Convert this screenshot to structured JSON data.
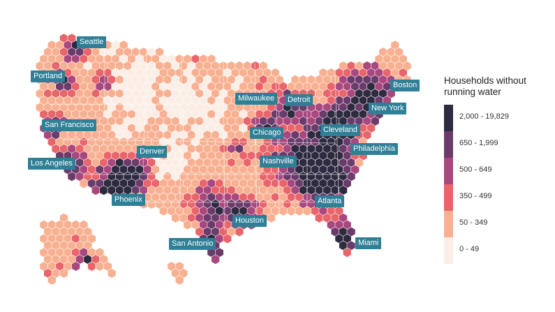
{
  "legend": {
    "title_line1": "Households without",
    "title_line2": "running water",
    "bins": [
      {
        "label": "2,000 - 19,829",
        "color": "#2e2a40"
      },
      {
        "label": "650 - 1,999",
        "color": "#6b3c6b"
      },
      {
        "label": "500 - 649",
        "color": "#a8487e"
      },
      {
        "label": "350 - 499",
        "color": "#e8666b"
      },
      {
        "label": "50 - 349",
        "color": "#f7b192"
      },
      {
        "label": "0 - 49",
        "color": "#fbeee6"
      }
    ]
  },
  "cities": [
    {
      "key": "seattle",
      "name": "Seattle"
    },
    {
      "key": "portland",
      "name": "Portland"
    },
    {
      "key": "san_francisco",
      "name": "San Francisco"
    },
    {
      "key": "los_angeles",
      "name": "Los Angeles"
    },
    {
      "key": "denver",
      "name": "Denver"
    },
    {
      "key": "phoenix",
      "name": "Phoenix"
    },
    {
      "key": "san_antonio",
      "name": "San Antonio"
    },
    {
      "key": "houston",
      "name": "Houston"
    },
    {
      "key": "milwaukee",
      "name": "Milwaukee"
    },
    {
      "key": "chicago",
      "name": "Chicago"
    },
    {
      "key": "detroit",
      "name": "Detroit"
    },
    {
      "key": "nashville",
      "name": "Nashville"
    },
    {
      "key": "atlanta",
      "name": "Atlanta"
    },
    {
      "key": "miami",
      "name": "Miami"
    },
    {
      "key": "cleveland",
      "name": "Cleveland"
    },
    {
      "key": "philadelphia",
      "name": "Philadelphia"
    },
    {
      "key": "new_york",
      "name": "New York"
    },
    {
      "key": "boston",
      "name": "Boston"
    }
  ]
}
